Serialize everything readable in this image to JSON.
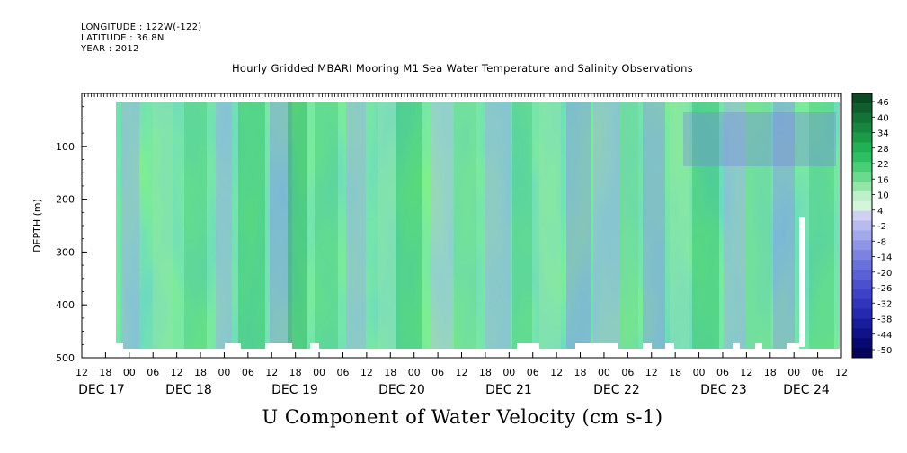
{
  "header": {
    "longitude": "LONGITUDE : 122W(-122)",
    "latitude": "LATITUDE : 36.8N",
    "year": "YEAR : 2012",
    "title": "Hourly Gridded MBARI Mooring M1 Sea Water Temperature and Salinity Observations"
  },
  "chart_data": {
    "type": "heatmap",
    "title": "Hourly Gridded MBARI Mooring M1 Sea Water Temperature and Salinity Observations",
    "xlabel": "U Component of Water Velocity (cm s-1)",
    "ylabel": "DEPTH (m)",
    "ylim": [
      500,
      0
    ],
    "y_ticks": [
      100,
      200,
      300,
      400,
      500
    ],
    "x_hour_ticks": [
      "12",
      "18",
      "00",
      "06",
      "12",
      "18",
      "00",
      "06",
      "12",
      "18",
      "00",
      "06",
      "12",
      "18",
      "00",
      "06",
      "12",
      "18",
      "00",
      "06",
      "12",
      "18",
      "00",
      "06",
      "12",
      "18",
      "00",
      "06",
      "12",
      "18",
      "00",
      "06",
      "12"
    ],
    "x_day_labels": [
      "DEC 17",
      "DEC 18",
      "DEC 19",
      "DEC 20",
      "DEC 21",
      "DEC 22",
      "DEC 23",
      "DEC 24"
    ],
    "colorbar": {
      "labels": [
        "46",
        "40",
        "34",
        "28",
        "22",
        "16",
        "10",
        "4",
        "-2",
        "-8",
        "-14",
        "-20",
        "-26",
        "-32",
        "-38",
        "-44",
        "-50"
      ],
      "colors": [
        "#0b4a22",
        "#0f5e2b",
        "#137235",
        "#17873f",
        "#1b9b48",
        "#21b055",
        "#2cc062",
        "#48ce76",
        "#6cda8c",
        "#95e5a8",
        "#bdefc8",
        "#d4f5d9",
        "#cfd0f2",
        "#b8bbee",
        "#a3a8ea",
        "#8f95e6",
        "#7b82e1",
        "#6a70dc",
        "#5a60d6",
        "#4b50cf",
        "#3d42c6",
        "#3035bb",
        "#2429ad",
        "#191d9c",
        "#0f1288",
        "#080a70",
        "#04055a"
      ]
    },
    "grid": false,
    "legend": "right"
  }
}
